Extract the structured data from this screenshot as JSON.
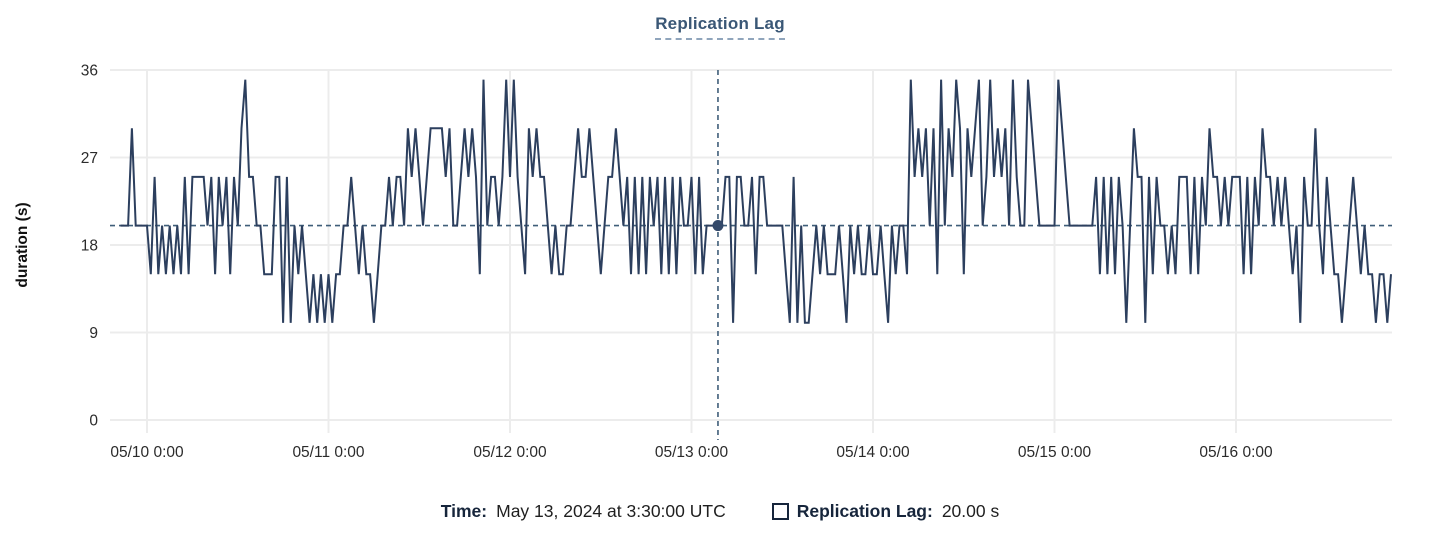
{
  "title": "Replication Lag",
  "y_axis": {
    "label": "duration (s)",
    "ticks": [
      0,
      9,
      18,
      27,
      36
    ],
    "max": 36
  },
  "x_axis": {
    "ticks": [
      "05/10 0:00",
      "05/11 0:00",
      "05/12 0:00",
      "05/13 0:00",
      "05/14 0:00",
      "05/15 0:00",
      "05/16 0:00"
    ]
  },
  "tooltip": {
    "time_label": "Time:",
    "time_value": "May 13, 2024 at 3:30:00 UTC",
    "series_label": "Replication Lag:",
    "series_value": "20.00 s"
  },
  "colors": {
    "line": "#2c3f5e",
    "crosshair": "#3f5e79",
    "dot": "#33496a",
    "grid": "#ececec",
    "title": "#3a5776",
    "axis_text": "#2b2b2b",
    "legend_text": "#16253b"
  },
  "chart_data": {
    "type": "line",
    "series_name": "Replication Lag",
    "title": "Replication Lag",
    "ylabel": "duration (s)",
    "ylim": [
      0,
      36
    ],
    "grid": true,
    "step_minutes": 30,
    "start_time": "05/09 20:30",
    "x_layout": {
      "points_per_day": 48,
      "first_tick_point_index": 7
    },
    "crosshair": {
      "index": 158,
      "value": 20,
      "time": "May 13, 2024 at 3:30:00 UTC",
      "display_value": "20.00 s"
    },
    "values": [
      20,
      20,
      20,
      30,
      20,
      20,
      20,
      20,
      15,
      25,
      15,
      20,
      15,
      20,
      15,
      20,
      15,
      25,
      15,
      25,
      25,
      25,
      25,
      20,
      25,
      15,
      25,
      20,
      25,
      15,
      25,
      20,
      30,
      35,
      25,
      25,
      20,
      20,
      15,
      15,
      15,
      25,
      25,
      10,
      25,
      10,
      20,
      15,
      20,
      15,
      10,
      15,
      10,
      15,
      10,
      15,
      10,
      15,
      15,
      20,
      20,
      25,
      20,
      15,
      20,
      15,
      15,
      10,
      15,
      20,
      20,
      25,
      20,
      25,
      25,
      20,
      30,
      25,
      30,
      25,
      20,
      25,
      30,
      30,
      30,
      30,
      25,
      30,
      20,
      20,
      25,
      30,
      25,
      30,
      25,
      15,
      35,
      20,
      25,
      25,
      20,
      25,
      35,
      25,
      35,
      25,
      20,
      15,
      30,
      25,
      30,
      25,
      25,
      20,
      15,
      20,
      15,
      15,
      20,
      20,
      25,
      30,
      25,
      25,
      30,
      25,
      20,
      15,
      20,
      25,
      25,
      30,
      25,
      20,
      25,
      15,
      25,
      15,
      25,
      15,
      25,
      20,
      25,
      15,
      25,
      15,
      25,
      15,
      25,
      20,
      20,
      25,
      15,
      25,
      15,
      20,
      20,
      20,
      20,
      20,
      25,
      25,
      10,
      25,
      25,
      20,
      20,
      25,
      15,
      25,
      25,
      20,
      20,
      20,
      20,
      20,
      15,
      10,
      25,
      10,
      20,
      10,
      10,
      15,
      20,
      15,
      20,
      15,
      15,
      15,
      20,
      15,
      10,
      20,
      15,
      20,
      15,
      15,
      20,
      15,
      15,
      20,
      15,
      10,
      20,
      15,
      20,
      20,
      15,
      35,
      25,
      30,
      25,
      30,
      20,
      30,
      15,
      35,
      20,
      30,
      25,
      35,
      30,
      15,
      30,
      25,
      30,
      35,
      20,
      25,
      35,
      25,
      30,
      25,
      30,
      20,
      35,
      25,
      20,
      20,
      35,
      30,
      25,
      20,
      20,
      20,
      20,
      20,
      35,
      30,
      25,
      20,
      20,
      20,
      20,
      20,
      20,
      20,
      25,
      15,
      25,
      15,
      25,
      15,
      25,
      20,
      10,
      20,
      30,
      25,
      25,
      10,
      25,
      15,
      25,
      20,
      20,
      15,
      20,
      15,
      25,
      25,
      25,
      15,
      25,
      15,
      25,
      20,
      30,
      25,
      25,
      20,
      25,
      20,
      25,
      25,
      25,
      15,
      25,
      15,
      25,
      20,
      30,
      25,
      25,
      20,
      25,
      20,
      25,
      20,
      15,
      20,
      10,
      25,
      20,
      20,
      30,
      20,
      15,
      25,
      20,
      15,
      15,
      10,
      15,
      20,
      25,
      20,
      15,
      20,
      15,
      15,
      10,
      15,
      15,
      10,
      15
    ]
  }
}
